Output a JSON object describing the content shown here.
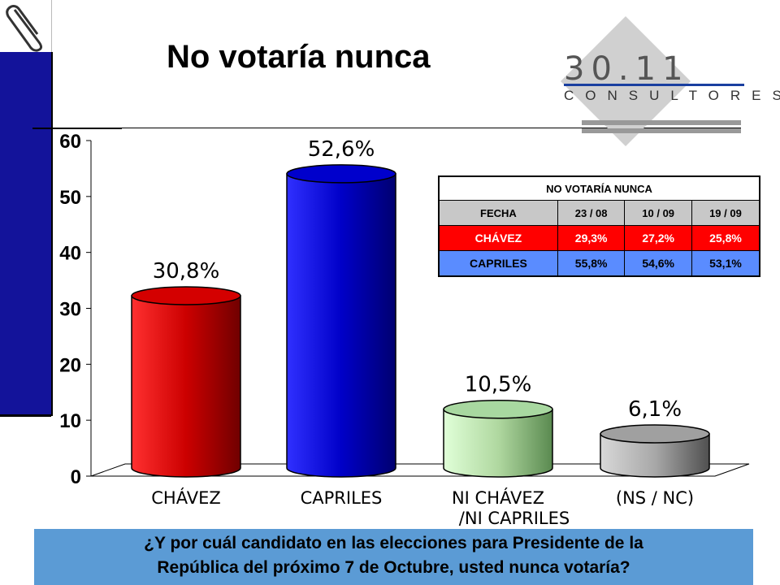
{
  "title": "No votaría nunca",
  "logo": {
    "number": "30.11",
    "subtitle": "CONSULTORES"
  },
  "chart_data": {
    "type": "bar",
    "categories": [
      "CHÁVEZ",
      "CAPRILES",
      "NI CHÁVEZ\n/NI CAPRILES",
      "(NS / NC)"
    ],
    "values": [
      30.8,
      52.6,
      10.5,
      6.1
    ],
    "data_labels": [
      "30,8%",
      "52,6%",
      "10,5%",
      "6,1%"
    ],
    "colors": [
      "#d40000",
      "#0000cc",
      "#a8d8a0",
      "#a0a0a0"
    ],
    "ylim": [
      0,
      60
    ],
    "yticks": [
      0,
      10,
      20,
      30,
      40,
      50,
      60
    ],
    "grid": false
  },
  "table": {
    "title": "NO VOTARÍA NUNCA",
    "header": [
      "FECHA",
      "23 / 08",
      "10 / 09",
      "19 / 09"
    ],
    "rows": [
      {
        "label": "CHÁVEZ",
        "values": [
          "29,3%",
          "27,2%",
          "25,8%"
        ]
      },
      {
        "label": "CAPRILES",
        "values": [
          "55,8%",
          "54,6%",
          "53,1%"
        ]
      }
    ]
  },
  "question": {
    "line1": "¿Y por cuál candidato en las elecciones para Presidente de la",
    "line2": "República del próximo 7 de Octubre, usted nunca votaría?"
  }
}
